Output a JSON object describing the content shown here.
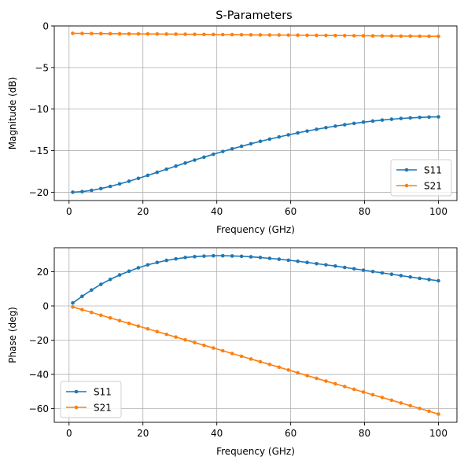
{
  "figure_title": "S-Parameters",
  "chart_data": [
    {
      "type": "line",
      "title": "S-Parameters",
      "xlabel": "Frequency (GHz)",
      "ylabel": "Magnitude (dB)",
      "xlim": [
        -4,
        105
      ],
      "ylim": [
        -21,
        0
      ],
      "xticks": [
        0,
        20,
        40,
        60,
        80,
        100
      ],
      "yticks": [
        -20,
        -15,
        -10,
        -5,
        0
      ],
      "grid": true,
      "legend": "lower-right",
      "x": [
        1,
        3.54,
        6.08,
        8.62,
        11.15,
        13.69,
        16.23,
        18.77,
        21.31,
        23.85,
        26.38,
        28.92,
        31.46,
        34,
        36.54,
        39.08,
        41.62,
        44.15,
        46.69,
        49.23,
        51.77,
        54.31,
        56.85,
        59.38,
        61.92,
        64.46,
        67,
        69.54,
        72.08,
        74.62,
        77.15,
        79.69,
        82.23,
        84.77,
        87.31,
        89.85,
        92.38,
        94.92,
        97.46,
        100
      ],
      "series": [
        {
          "name": "S11",
          "color": "#1f77b4",
          "values": [
            -20.0,
            -19.93,
            -19.78,
            -19.56,
            -19.3,
            -19.0,
            -18.68,
            -18.33,
            -17.97,
            -17.6,
            -17.23,
            -16.86,
            -16.49,
            -16.13,
            -15.78,
            -15.43,
            -15.1,
            -14.78,
            -14.47,
            -14.17,
            -13.88,
            -13.61,
            -13.35,
            -13.1,
            -12.86,
            -12.64,
            -12.43,
            -12.23,
            -12.05,
            -11.88,
            -11.72,
            -11.57,
            -11.44,
            -11.32,
            -11.22,
            -11.13,
            -11.06,
            -11.0,
            -10.96,
            -10.93
          ]
        },
        {
          "name": "S21",
          "color": "#ff7f0e",
          "values": [
            -0.89,
            -0.9,
            -0.91,
            -0.92,
            -0.93,
            -0.94,
            -0.95,
            -0.96,
            -0.96,
            -0.97,
            -0.98,
            -0.99,
            -1.0,
            -1.01,
            -1.02,
            -1.03,
            -1.04,
            -1.05,
            -1.06,
            -1.07,
            -1.08,
            -1.09,
            -1.09,
            -1.1,
            -1.11,
            -1.12,
            -1.13,
            -1.14,
            -1.15,
            -1.16,
            -1.17,
            -1.18,
            -1.19,
            -1.2,
            -1.21,
            -1.22,
            -1.22,
            -1.23,
            -1.24,
            -1.25
          ]
        }
      ]
    },
    {
      "type": "line",
      "title": "",
      "xlabel": "Frequency (GHz)",
      "ylabel": "Phase (deg)",
      "xlim": [
        -4,
        105
      ],
      "ylim": [
        -68,
        34
      ],
      "xticks": [
        0,
        20,
        40,
        60,
        80,
        100
      ],
      "yticks": [
        -60,
        -40,
        -20,
        0,
        20
      ],
      "grid": true,
      "legend": "lower-left",
      "x": [
        1,
        3.54,
        6.08,
        8.62,
        11.15,
        13.69,
        16.23,
        18.77,
        21.31,
        23.85,
        26.38,
        28.92,
        31.46,
        34,
        36.54,
        39.08,
        41.62,
        44.15,
        46.69,
        49.23,
        51.77,
        54.31,
        56.85,
        59.38,
        61.92,
        64.46,
        67,
        69.54,
        72.08,
        74.62,
        77.15,
        79.69,
        82.23,
        84.77,
        87.31,
        89.85,
        92.38,
        94.92,
        97.46,
        100
      ],
      "series": [
        {
          "name": "S11",
          "color": "#1f77b4",
          "values": [
            1.7,
            5.6,
            9.3,
            12.6,
            15.5,
            18.1,
            20.3,
            22.3,
            24.0,
            25.4,
            26.6,
            27.5,
            28.3,
            28.8,
            29.1,
            29.3,
            29.3,
            29.2,
            29.0,
            28.7,
            28.3,
            27.8,
            27.3,
            26.7,
            26.1,
            25.4,
            24.7,
            24.0,
            23.3,
            22.5,
            21.7,
            20.9,
            20.1,
            19.3,
            18.5,
            17.7,
            16.9,
            16.1,
            15.4,
            14.7
          ]
        },
        {
          "name": "S21",
          "color": "#ff7f0e",
          "values": [
            -0.6,
            -2.2,
            -3.8,
            -5.4,
            -7.0,
            -8.6,
            -10.2,
            -11.8,
            -13.4,
            -15.0,
            -16.6,
            -18.2,
            -19.8,
            -21.4,
            -23.0,
            -24.6,
            -26.2,
            -27.8,
            -29.4,
            -31.0,
            -32.6,
            -34.2,
            -35.8,
            -37.4,
            -39.1,
            -40.7,
            -42.3,
            -43.9,
            -45.5,
            -47.1,
            -48.7,
            -50.3,
            -51.9,
            -53.5,
            -55.1,
            -56.7,
            -58.3,
            -59.9,
            -61.5,
            -63.2
          ]
        }
      ]
    }
  ]
}
